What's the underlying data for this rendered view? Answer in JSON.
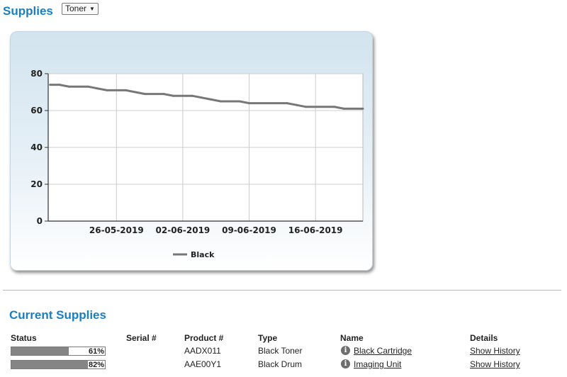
{
  "header": {
    "title": "Supplies"
  },
  "supply_select": {
    "value": "Toner",
    "caret": "▼"
  },
  "chart_data": {
    "type": "line",
    "x_tick_labels": [
      "26-05-2019",
      "02-06-2019",
      "09-06-2019",
      "16-06-2019"
    ],
    "ylim": [
      0,
      80
    ],
    "y_ticks": [
      0,
      20,
      40,
      60,
      80
    ],
    "grid": true,
    "legend_position": "bottom-center",
    "series": [
      {
        "name": "Black",
        "color": "#777777",
        "points": [
          {
            "x": "2019-05-19",
            "y": 74
          },
          {
            "x": "2019-05-20",
            "y": 74
          },
          {
            "x": "2019-05-21",
            "y": 73
          },
          {
            "x": "2019-05-23",
            "y": 73
          },
          {
            "x": "2019-05-24",
            "y": 72
          },
          {
            "x": "2019-05-25",
            "y": 71
          },
          {
            "x": "2019-05-27",
            "y": 71
          },
          {
            "x": "2019-05-28",
            "y": 70
          },
          {
            "x": "2019-05-29",
            "y": 69
          },
          {
            "x": "2019-05-31",
            "y": 69
          },
          {
            "x": "2019-06-01",
            "y": 68
          },
          {
            "x": "2019-06-03",
            "y": 68
          },
          {
            "x": "2019-06-04",
            "y": 67
          },
          {
            "x": "2019-06-05",
            "y": 66
          },
          {
            "x": "2019-06-06",
            "y": 65
          },
          {
            "x": "2019-06-08",
            "y": 65
          },
          {
            "x": "2019-06-09",
            "y": 64
          },
          {
            "x": "2019-06-13",
            "y": 64
          },
          {
            "x": "2019-06-14",
            "y": 63
          },
          {
            "x": "2019-06-15",
            "y": 62
          },
          {
            "x": "2019-06-18",
            "y": 62
          },
          {
            "x": "2019-06-19",
            "y": 61
          },
          {
            "x": "2019-06-21",
            "y": 61
          }
        ]
      }
    ]
  },
  "current_supplies": {
    "title": "Current Supplies",
    "headers": {
      "status": "Status",
      "serial": "Serial #",
      "product": "Product #",
      "type": "Type",
      "name": "Name",
      "details": "Details"
    },
    "rows": [
      {
        "status_pct": 61,
        "status_text": "61%",
        "serial": "",
        "product": "AADX011",
        "type": "Black Toner",
        "name": "Black Cartridge",
        "info_icon": "info-icon",
        "details": "Show History"
      },
      {
        "status_pct": 82,
        "status_text": "82%",
        "serial": "",
        "product": "AAE00Y1",
        "type": "Black Drum",
        "name": "Imaging Unit",
        "info_icon": "info-icon",
        "details": "Show History"
      }
    ]
  }
}
